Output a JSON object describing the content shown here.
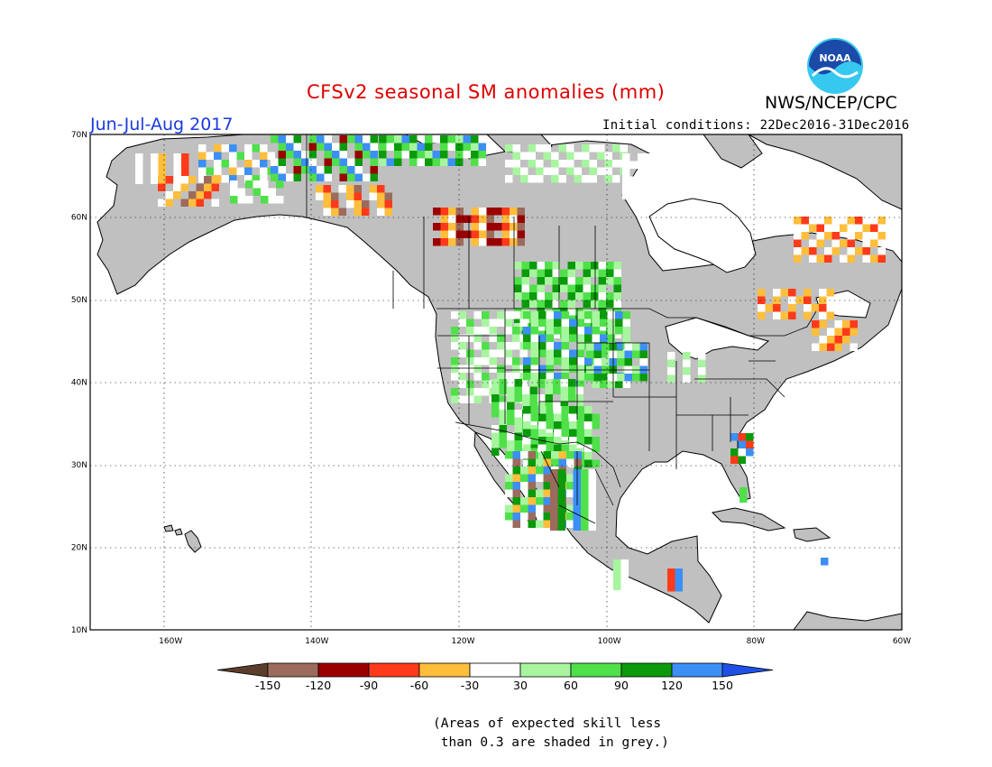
{
  "header": {
    "title": "CFSv2 seasonal SM anomalies (mm)",
    "agency": "NWS/NCEP/CPC",
    "logo_text": "NOAA",
    "period": "Jun-Jul-Aug 2017",
    "initial_conditions": "Initial conditions: 22Dec2016-31Dec2016"
  },
  "colors": {
    "title": "#dd0000",
    "period": "#1a3ae0",
    "ocean": "#ffffff",
    "skill_mask_grey": "#c0c0c0",
    "logo_blue": "#1b4aa8",
    "logo_cyan": "#37c8f0"
  },
  "map": {
    "lat_labels": [
      "70N",
      "60N",
      "50N",
      "40N",
      "30N",
      "20N",
      "10N"
    ],
    "lon_labels": [
      "160W",
      "140W",
      "120W",
      "100W",
      "80W",
      "60W"
    ],
    "lat_range": [
      10,
      70
    ],
    "lon_range": [
      -171,
      -60
    ],
    "gridlines": "dotted"
  },
  "colorbar": {
    "tick_labels": [
      "-150",
      "-120",
      "-90",
      "-60",
      "-30",
      "30",
      "60",
      "90",
      "120",
      "150"
    ],
    "bins": [
      {
        "label": "< -150",
        "color": "#5a3d2b"
      },
      {
        "label": "-150 to -120",
        "color": "#9c6b5d"
      },
      {
        "label": "-120 to -90",
        "color": "#9a0000"
      },
      {
        "label": "-90 to -60",
        "color": "#ff3a1a"
      },
      {
        "label": "-60 to -30",
        "color": "#ffbe3c"
      },
      {
        "label": "-30 to 30",
        "color": "#ffffff"
      },
      {
        "label": "30 to 60",
        "color": "#a8f5a0"
      },
      {
        "label": "60 to 90",
        "color": "#4fe04a"
      },
      {
        "label": "90 to 120",
        "color": "#0b9a0b"
      },
      {
        "label": "120 to 150",
        "color": "#3c8ff5"
      },
      {
        "label": "> 150",
        "color": "#1e50e6"
      }
    ]
  },
  "footnote": {
    "line1": "(Areas of expected skill less",
    "line2": " than 0.3 are shaded in grey.)"
  }
}
